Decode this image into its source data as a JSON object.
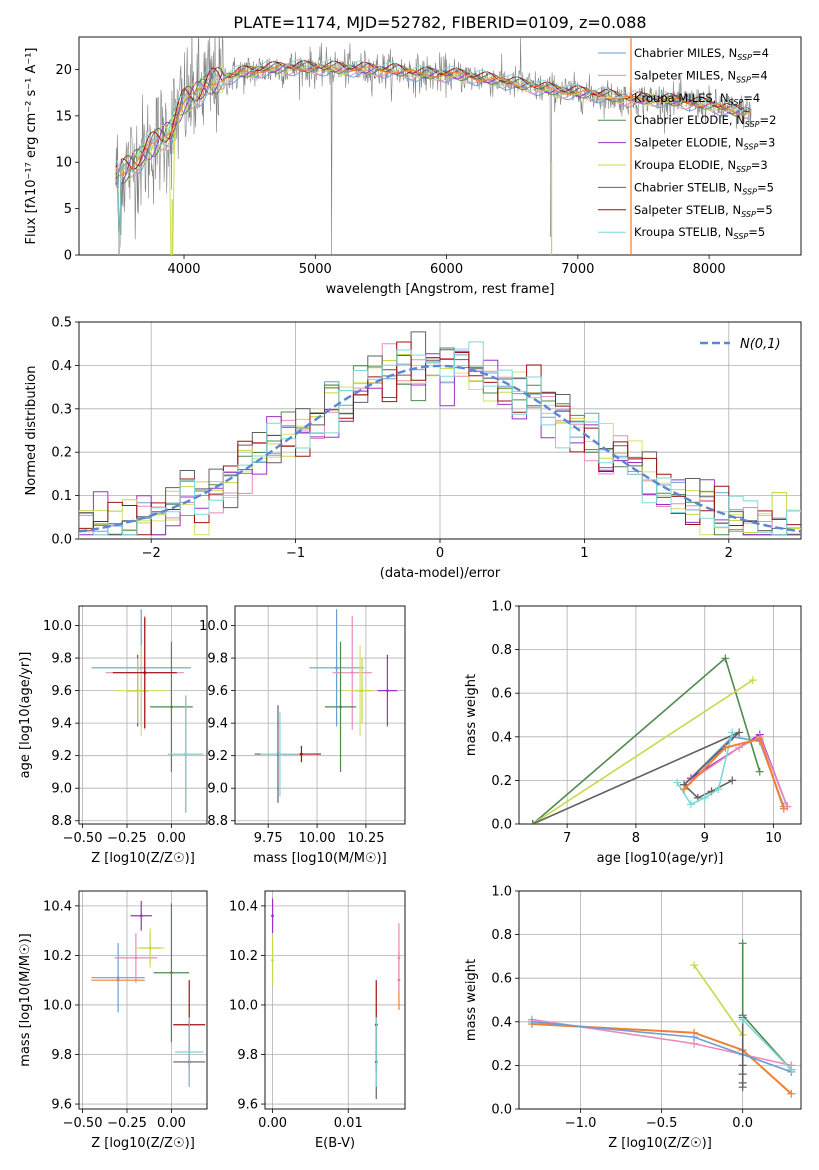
{
  "colors": {
    "chabrier_miles": "#6a9fd8",
    "salpeter_miles": "#e98bb8",
    "kroupa_miles": "#d4e26a",
    "chabrier_elodie": "#4f8a4f",
    "salpeter_elodie": "#9b30c8",
    "kroupa_elodie": "#c8d84a",
    "chabrier_stelib": "#606060",
    "salpeter_stelib": "#a01010",
    "kroupa_stelib": "#7fd8d8",
    "data": "#808080",
    "model": "#f08030",
    "normal": "#5a86d6"
  },
  "chart_data": [
    {
      "type": "line",
      "title": "PLATE=1174, MJD=52782, FIBERID=0109, z=0.088",
      "xlabel": "wavelength [Angstrom, rest frame]",
      "ylabel": "Flux [fλ10⁻¹⁷ erg cm⁻² s⁻¹ A⁻¹]",
      "xlim": [
        3200,
        8700
      ],
      "ylim": [
        0,
        23.5
      ],
      "xticks": [
        "4000",
        "5000",
        "6000",
        "7000",
        "8000"
      ],
      "yticks": [
        "0",
        "5",
        "10",
        "15",
        "20"
      ],
      "legend_position": "top-right",
      "legend": [
        "Chabrier MILES, N_SSP=4",
        "Salpeter MILES, N_SSP=4",
        "Kroupa MILES, N_SSP=4",
        "Chabrier ELODIE, N_SSP=2",
        "Salpeter ELODIE, N_SSP=3",
        "Kroupa ELODIE, N_SSP=3",
        "Chabrier STELIB, N_SSP=5",
        "Salpeter STELIB, N_SSP=5",
        "Kroupa STELIB, N_SSP=5"
      ],
      "continuum": {
        "x": [
          3500,
          3700,
          3900,
          4000,
          4200,
          4400,
          4600,
          4800,
          5000,
          5200,
          5400,
          5600,
          5800,
          6000,
          6200,
          6400,
          6600,
          6800,
          7000,
          7200,
          7400,
          7600,
          7800,
          8000,
          8200
        ],
        "y": [
          8.5,
          11,
          13.5,
          16.5,
          18.5,
          19.5,
          20,
          20.2,
          20.2,
          20.1,
          20.0,
          19.9,
          19.5,
          19.5,
          19.2,
          18.8,
          18.3,
          17.8,
          17.5,
          17.2,
          16.8,
          16.8,
          16.5,
          16.2,
          15.5
        ]
      }
    },
    {
      "type": "step",
      "xlabel": "(data-model)/error",
      "ylabel": "Normed distribution",
      "xlim": [
        -2.5,
        2.5
      ],
      "ylim": [
        0,
        0.5
      ],
      "xticks": [
        "−2",
        "−1",
        "0",
        "1",
        "2"
      ],
      "yticks": [
        "0.0",
        "0.1",
        "0.2",
        "0.3",
        "0.4",
        "0.5"
      ],
      "legend": [
        "N(0,1)"
      ],
      "legend_position": "top-right"
    },
    {
      "type": "scatter",
      "xlabel": "Z [log10(Z/Z☉)]",
      "ylabel": "age  [log10(age/yr)]",
      "xlim": [
        -0.52,
        0.2
      ],
      "ylim": [
        8.78,
        10.12
      ],
      "xticks": [
        "−0.50",
        "−0.25",
        "0.00"
      ],
      "yticks": [
        "8.8",
        "9.0",
        "9.2",
        "9.4",
        "9.6",
        "9.8",
        "10.0"
      ],
      "points": [
        {
          "s": "chabrier_miles",
          "x": -0.17,
          "y": 9.74,
          "xe": 0.28,
          "ye": 0.36
        },
        {
          "s": "salpeter_miles",
          "x": -0.15,
          "y": 9.71,
          "xe": 0.22,
          "ye": 0.35
        },
        {
          "s": "kroupa_miles",
          "x": -0.17,
          "y": 9.6,
          "xe": 0.15,
          "ye": 0.28
        },
        {
          "s": "chabrier_elodie",
          "x": 0.0,
          "y": 9.5,
          "xe": 0.12,
          "ye": 0.4
        },
        {
          "s": "salpeter_elodie",
          "x": -0.19,
          "y": 9.6,
          "xe": 0.06,
          "ye": 0.22
        },
        {
          "s": "kroupa_elodie",
          "x": -0.19,
          "y": 9.6,
          "xe": 0.06,
          "ye": 0.2
        },
        {
          "s": "chabrier_stelib",
          "x": 0.08,
          "y": 9.21,
          "xe": 0.1,
          "ye": 0.36
        },
        {
          "s": "salpeter_stelib",
          "x": -0.15,
          "y": 9.71,
          "xe": 0.18,
          "ye": 0.34
        },
        {
          "s": "kroupa_stelib",
          "x": 0.08,
          "y": 9.21,
          "xe": 0.1,
          "ye": 0.36
        }
      ]
    },
    {
      "type": "scatter",
      "xlabel": "mass [log10(M/M☉)]",
      "ylabel": "",
      "xlim": [
        9.58,
        10.45
      ],
      "ylim": [
        8.78,
        10.12
      ],
      "xticks": [
        "9.75",
        "10.00",
        "10.25"
      ],
      "yticks": [
        "8.8",
        "9.0",
        "9.2",
        "9.4",
        "9.6",
        "9.8",
        "10.0"
      ],
      "points": [
        {
          "s": "chabrier_miles",
          "x": 10.1,
          "y": 9.74,
          "xe": 0.14,
          "ye": 0.36
        },
        {
          "s": "salpeter_miles",
          "x": 10.18,
          "y": 9.71,
          "xe": 0.1,
          "ye": 0.35
        },
        {
          "s": "kroupa_miles",
          "x": 10.22,
          "y": 9.6,
          "xe": 0.08,
          "ye": 0.28
        },
        {
          "s": "chabrier_elodie",
          "x": 10.12,
          "y": 9.5,
          "xe": 0.08,
          "ye": 0.4
        },
        {
          "s": "salpeter_elodie",
          "x": 10.36,
          "y": 9.6,
          "xe": 0.05,
          "ye": 0.22
        },
        {
          "s": "kroupa_elodie",
          "x": 10.23,
          "y": 9.6,
          "xe": 0.05,
          "ye": 0.2
        },
        {
          "s": "chabrier_stelib",
          "x": 9.8,
          "y": 9.21,
          "xe": 0.12,
          "ye": 0.3
        },
        {
          "s": "salpeter_stelib",
          "x": 9.92,
          "y": 9.21,
          "xe": 0.1,
          "ye": 0.05
        },
        {
          "s": "kroupa_stelib",
          "x": 9.81,
          "y": 9.21,
          "xe": 0.1,
          "ye": 0.26
        }
      ]
    },
    {
      "type": "line",
      "xlabel": "age  [log10(age/yr)]",
      "ylabel": "mass weight",
      "xlim": [
        6.3,
        10.4
      ],
      "ylim": [
        0,
        1.0
      ],
      "xticks": [
        "7",
        "8",
        "9",
        "10"
      ],
      "yticks": [
        "0.0",
        "0.2",
        "0.4",
        "0.6",
        "0.8",
        "1.0"
      ],
      "series": [
        {
          "s": "chabrier_elodie",
          "x": [
            6.5,
            9.3,
            9.8
          ],
          "y": [
            0.0,
            0.76,
            0.24
          ]
        },
        {
          "s": "kroupa_elodie",
          "x": [
            6.5,
            9.7
          ],
          "y": [
            0.0,
            0.66
          ]
        },
        {
          "s": "salpeter_elodie",
          "x": [
            8.8,
            9.8,
            10.2
          ],
          "y": [
            0.21,
            0.41,
            0.08
          ]
        },
        {
          "s": "chabrier_miles",
          "x": [
            8.7,
            9.4,
            9.8,
            10.15
          ],
          "y": [
            0.18,
            0.4,
            0.38,
            0.08
          ]
        },
        {
          "s": "salpeter_miles",
          "x": [
            8.8,
            9.5,
            9.8,
            10.2
          ],
          "y": [
            0.2,
            0.35,
            0.4,
            0.08
          ]
        },
        {
          "s": "chabrier_stelib",
          "x": [
            6.5,
            9.5,
            8.7,
            8.9,
            9.1,
            9.4
          ],
          "y": [
            0.0,
            0.42,
            0.18,
            0.12,
            0.15,
            0.2
          ]
        },
        {
          "s": "kroupa_stelib",
          "x": [
            8.6,
            8.8,
            9.0,
            9.2,
            9.4
          ],
          "y": [
            0.19,
            0.09,
            0.12,
            0.16,
            0.42
          ]
        },
        {
          "s": "model",
          "x": [
            8.7,
            9.3,
            9.8,
            10.15
          ],
          "y": [
            0.16,
            0.35,
            0.39,
            0.07
          ]
        }
      ]
    },
    {
      "type": "scatter",
      "xlabel": "Z [log10(Z/Z☉)]",
      "ylabel": "mass [log10(M/M☉)]",
      "xlim": [
        -0.52,
        0.2
      ],
      "ylim": [
        9.58,
        10.46
      ],
      "xticks": [
        "−0.50",
        "−0.25",
        "0.00"
      ],
      "yticks": [
        "9.6",
        "9.8",
        "10.0",
        "10.2",
        "10.4"
      ],
      "points": [
        {
          "s": "chabrier_miles",
          "x": -0.3,
          "y": 10.11,
          "xe": 0.15,
          "ye": 0.14
        },
        {
          "s": "salpeter_miles",
          "x": -0.2,
          "y": 10.19,
          "xe": 0.12,
          "ye": 0.1
        },
        {
          "s": "kroupa_miles",
          "x": -0.12,
          "y": 10.23,
          "xe": 0.08,
          "ye": 0.08
        },
        {
          "s": "chabrier_elodie",
          "x": 0.0,
          "y": 10.13,
          "xe": 0.1,
          "ye": 0.28
        },
        {
          "s": "salpeter_elodie",
          "x": -0.17,
          "y": 10.36,
          "xe": 0.06,
          "ye": 0.06
        },
        {
          "s": "kroupa_elodie",
          "x": -0.12,
          "y": 10.23,
          "xe": 0.06,
          "ye": 0.06
        },
        {
          "s": "chabrier_stelib",
          "x": 0.1,
          "y": 9.77,
          "xe": 0.09,
          "ye": 0.1
        },
        {
          "s": "salpeter_stelib",
          "x": 0.1,
          "y": 9.92,
          "xe": 0.09,
          "ye": 0.18
        },
        {
          "s": "kroupa_stelib",
          "x": 0.1,
          "y": 9.81,
          "xe": 0.08,
          "ye": 0.14
        },
        {
          "s": "model",
          "x": -0.3,
          "y": 10.1,
          "xe": 0.15,
          "ye": 0.0
        }
      ]
    },
    {
      "type": "scatter",
      "xlabel": "E(B-V)",
      "ylabel": "",
      "xlim": [
        -0.001,
        0.0175
      ],
      "ylim": [
        9.58,
        10.46
      ],
      "xticks": [
        "0.00",
        "0.01"
      ],
      "yticks": [
        "9.6",
        "9.8",
        "10.0",
        "10.2",
        "10.4"
      ],
      "points": [
        {
          "s": "salpeter_elodie",
          "x": 0.0,
          "y": 10.36,
          "xe": 0,
          "ye": 0.07
        },
        {
          "s": "kroupa_elodie",
          "x": 0.0,
          "y": 10.18,
          "xe": 0,
          "ye": 0.1
        },
        {
          "s": "chabrier_stelib",
          "x": 0.0137,
          "y": 9.77,
          "xe": 0,
          "ye": 0.15
        },
        {
          "s": "salpeter_stelib",
          "x": 0.0137,
          "y": 9.92,
          "xe": 0,
          "ye": 0.18
        },
        {
          "s": "kroupa_stelib",
          "x": 0.0137,
          "y": 9.81,
          "xe": 0,
          "ye": 0.14
        },
        {
          "s": "model",
          "x": 0.0167,
          "y": 10.1,
          "xe": 0,
          "ye": 0.12
        },
        {
          "s": "salpeter_miles",
          "x": 0.0167,
          "y": 10.19,
          "xe": 0,
          "ye": 0.14
        }
      ]
    },
    {
      "type": "line",
      "xlabel": "Z [log10(Z/Z☉)]",
      "ylabel": "mass weight",
      "xlim": [
        -1.38,
        0.36
      ],
      "ylim": [
        0,
        1.0
      ],
      "xticks": [
        "−1.0",
        "−0.5",
        "0.0"
      ],
      "yticks": [
        "0.0",
        "0.2",
        "0.4",
        "0.6",
        "0.8",
        "1.0"
      ],
      "series": [
        {
          "s": "salpeter_miles",
          "x": [
            -1.3,
            -0.3,
            0.0,
            0.3
          ],
          "y": [
            0.41,
            0.3,
            0.25,
            0.2
          ]
        },
        {
          "s": "model",
          "x": [
            -1.3,
            -0.3,
            0.0,
            0.3
          ],
          "y": [
            0.39,
            0.35,
            0.27,
            0.07
          ]
        },
        {
          "s": "chabrier_miles",
          "x": [
            -1.3,
            -0.3,
            0.0,
            0.3
          ],
          "y": [
            0.4,
            0.33,
            0.25,
            0.17
          ]
        },
        {
          "s": "kroupa_elodie",
          "x": [
            -0.3,
            0.0
          ],
          "y": [
            0.66,
            0.34
          ]
        },
        {
          "s": "chabrier_elodie",
          "x": [
            0.0,
            0.0,
            0.3
          ],
          "y": [
            0.76,
            0.43,
            0.18
          ]
        },
        {
          "s": "chabrier_stelib",
          "x": [
            0.0,
            0.0,
            0.0,
            0.0,
            0.0
          ],
          "y": [
            0.42,
            0.2,
            0.16,
            0.12,
            0.1
          ]
        },
        {
          "s": "kroupa_stelib",
          "x": [
            0.0,
            0.3
          ],
          "y": [
            0.41,
            0.18
          ]
        }
      ]
    }
  ]
}
